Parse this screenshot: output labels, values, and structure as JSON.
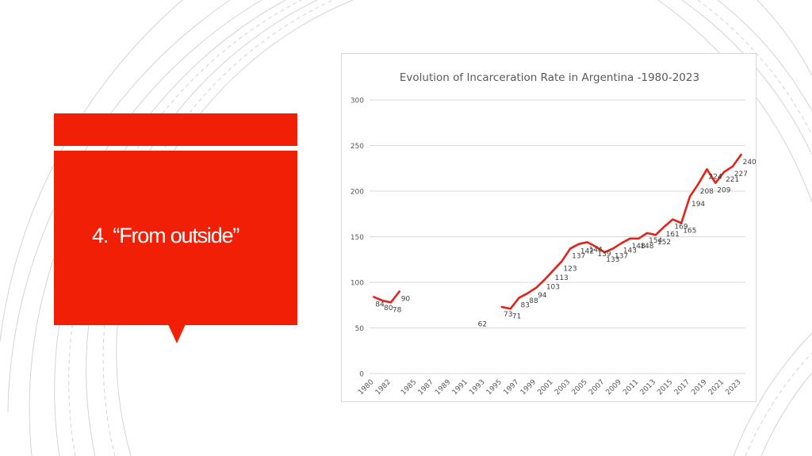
{
  "slide": {
    "title": "4. “From outside”",
    "accent_color": "#f11f06"
  },
  "chart_data": {
    "type": "line",
    "title": "Evolution of Incarceration Rate in Argentina -1980-2023",
    "xlabel": "",
    "ylabel": "",
    "ylim": [
      0,
      300
    ],
    "yticks": [
      0,
      50,
      100,
      150,
      200,
      250,
      300
    ],
    "xticks": [
      1980,
      1982,
      1985,
      1987,
      1989,
      1991,
      1993,
      1995,
      1997,
      1999,
      2001,
      2003,
      2005,
      2007,
      2009,
      2011,
      2013,
      2015,
      2017,
      2019,
      2021,
      2023
    ],
    "grid": true,
    "legend": "none",
    "line_color": "#e32219",
    "series": [
      {
        "x": [
          1980,
          1981,
          1982,
          1983,
          1984,
          1985,
          1986,
          1987,
          1988,
          1989,
          1990,
          1991,
          1992,
          1993,
          1994,
          1995,
          1996,
          1997,
          1998,
          1999,
          2000,
          2001,
          2002,
          2003,
          2004,
          2005,
          2006,
          2007,
          2008,
          2009,
          2010,
          2011,
          2012,
          2013,
          2014,
          2015,
          2016,
          2017,
          2018,
          2019,
          2020,
          2021,
          2022,
          2023
        ],
        "values": [
          84,
          80,
          78,
          90,
          null,
          null,
          null,
          null,
          null,
          null,
          null,
          null,
          62,
          null,
          null,
          73,
          71,
          83,
          88,
          94,
          103,
          113,
          123,
          137,
          142,
          144,
          139,
          133,
          137,
          143,
          148,
          148,
          154,
          152,
          161,
          169,
          165,
          194,
          208,
          224,
          209,
          221,
          227,
          240
        ],
        "labels": [
          "84",
          "80",
          "78",
          "90",
          "",
          "",
          "",
          "",
          "",
          "",
          "",
          "",
          "62",
          "",
          "",
          "73",
          "71",
          "83",
          "88",
          "94",
          "103",
          "113",
          "123",
          "137",
          "142",
          "144",
          "139",
          "133",
          "137",
          "143",
          "148",
          "148",
          "154",
          "152",
          "161",
          "169",
          "165",
          "194",
          "208",
          "224",
          "209",
          "221",
          "227",
          "240"
        ]
      }
    ]
  }
}
